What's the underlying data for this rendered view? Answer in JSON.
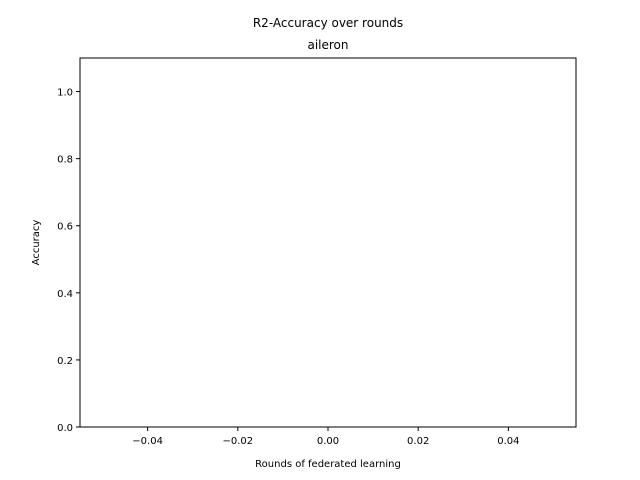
{
  "chart_data": {
    "type": "line",
    "title": "R2-Accuracy over rounds",
    "subtitle": "aileron",
    "xlabel": "Rounds of federated learning",
    "ylabel": "Accuracy",
    "xlim": [
      -0.055,
      0.055
    ],
    "ylim": [
      0,
      1.1
    ],
    "x_ticks": [
      -0.04,
      -0.02,
      0.0,
      0.02,
      0.04
    ],
    "x_tick_labels": [
      "−0.04",
      "−0.02",
      "0.00",
      "0.02",
      "0.04"
    ],
    "y_ticks": [
      0.0,
      0.2,
      0.4,
      0.6,
      0.8,
      1.0
    ],
    "y_tick_labels": [
      "0.0",
      "0.2",
      "0.4",
      "0.6",
      "0.8",
      "1.0"
    ],
    "grid": false,
    "series": []
  }
}
